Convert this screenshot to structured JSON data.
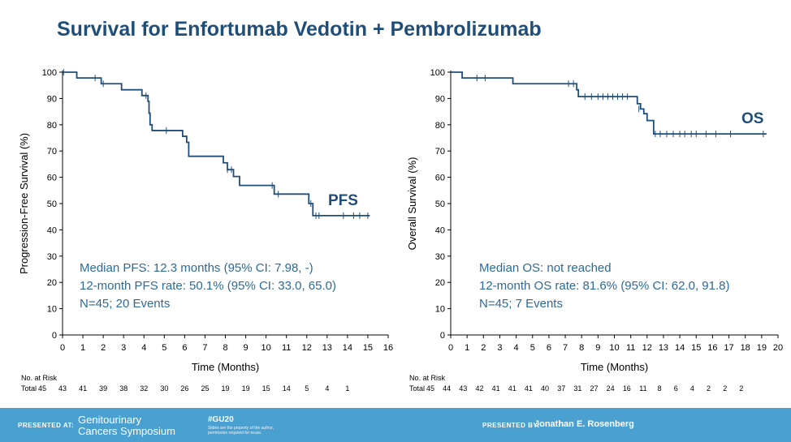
{
  "slide_title": "Survival for Enfortumab Vedotin + Pembrolizumab",
  "colors": {
    "curve": "#1f4e79",
    "text_blue": "#2e6a99",
    "title": "#1f4e79",
    "footer": "#4aa0d0"
  },
  "footer": {
    "presented_at": "PRESENTED AT:",
    "symposium_line1": "Genitourinary",
    "symposium_line2": "Cancers Symposium",
    "hashtag": "#GU20",
    "rights_line1": "Slides are the property of the author,",
    "rights_line2": "permission required for reuse.",
    "presented_by": "PRESENTED BY:",
    "presenter": "Jonathan E. Rosenberg"
  },
  "chart_data": [
    {
      "type": "line",
      "subtype": "kaplan-meier",
      "series_label": "PFS",
      "xlabel": "Time (Months)",
      "ylabel": "Progression-Free Survival (%)",
      "xlim": [
        0,
        16
      ],
      "ylim": [
        0,
        100
      ],
      "xticks": [
        "0",
        "1",
        "2",
        "3",
        "4",
        "5",
        "6",
        "7",
        "8",
        "9",
        "10",
        "11",
        "12",
        "13",
        "14",
        "15",
        "16"
      ],
      "yticks": [
        "0",
        "10",
        "20",
        "30",
        "40",
        "50",
        "60",
        "70",
        "80",
        "90",
        "100"
      ],
      "steps": [
        [
          0,
          100
        ],
        [
          0.7,
          97.8
        ],
        [
          1.9,
          95.6
        ],
        [
          2.9,
          93.3
        ],
        [
          3.9,
          91.1
        ],
        [
          4.2,
          88.9
        ],
        [
          4.25,
          84.4
        ],
        [
          4.3,
          80.0
        ],
        [
          4.4,
          77.8
        ],
        [
          5.9,
          75.6
        ],
        [
          6.1,
          73.3
        ],
        [
          6.2,
          68.0
        ],
        [
          7.9,
          65.5
        ],
        [
          8.1,
          62.9
        ],
        [
          8.4,
          60.3
        ],
        [
          8.7,
          56.9
        ],
        [
          10.4,
          53.6
        ],
        [
          12.1,
          50.0
        ],
        [
          12.3,
          45.4
        ],
        [
          15.1,
          45.4
        ]
      ],
      "censors": [
        [
          0.05,
          100
        ],
        [
          1.6,
          97.8
        ],
        [
          2.0,
          95.6
        ],
        [
          4.1,
          91.1
        ],
        [
          5.1,
          77.8
        ],
        [
          8.1,
          62.9
        ],
        [
          8.3,
          62.9
        ],
        [
          10.3,
          56.9
        ],
        [
          10.6,
          53.6
        ],
        [
          12.2,
          50.0
        ],
        [
          12.45,
          45.4
        ],
        [
          12.6,
          45.4
        ],
        [
          13.8,
          45.4
        ],
        [
          14.3,
          45.4
        ],
        [
          14.6,
          45.4
        ],
        [
          15.0,
          45.4
        ]
      ],
      "annotations": [
        "Median PFS: 12.3 months (95% CI: 7.98, -)",
        "12-month PFS rate: 50.1% (95% CI: 33.0, 65.0)",
        "N=45; 20 Events"
      ],
      "risk_title": "No. at Risk",
      "risk_row_label": "Total",
      "at_risk": [
        "45",
        "43",
        "41",
        "39",
        "38",
        "32",
        "30",
        "26",
        "25",
        "19",
        "19",
        "15",
        "14",
        "5",
        "4",
        "1"
      ]
    },
    {
      "type": "line",
      "subtype": "kaplan-meier",
      "series_label": "OS",
      "xlabel": "Time (Months)",
      "ylabel": "Overall Survival (%)",
      "xlim": [
        0,
        20
      ],
      "ylim": [
        0,
        100
      ],
      "xticks": [
        "0",
        "1",
        "2",
        "3",
        "4",
        "5",
        "6",
        "7",
        "8",
        "9",
        "10",
        "11",
        "12",
        "13",
        "14",
        "15",
        "16",
        "17",
        "18",
        "19",
        "20"
      ],
      "yticks": [
        "0",
        "10",
        "20",
        "30",
        "40",
        "50",
        "60",
        "70",
        "80",
        "90",
        "100"
      ],
      "steps": [
        [
          0,
          100
        ],
        [
          0.7,
          97.8
        ],
        [
          3.8,
          95.6
        ],
        [
          7.7,
          93.3
        ],
        [
          7.8,
          90.7
        ],
        [
          11.4,
          88.0
        ],
        [
          11.6,
          86.0
        ],
        [
          11.8,
          84.2
        ],
        [
          12.0,
          81.6
        ],
        [
          12.4,
          76.5
        ],
        [
          19.3,
          76.5
        ]
      ],
      "censors": [
        [
          1.6,
          97.8
        ],
        [
          2.1,
          97.8
        ],
        [
          7.2,
          95.6
        ],
        [
          7.5,
          95.6
        ],
        [
          8.2,
          90.7
        ],
        [
          8.6,
          90.7
        ],
        [
          9.0,
          90.7
        ],
        [
          9.3,
          90.7
        ],
        [
          9.6,
          90.7
        ],
        [
          9.9,
          90.7
        ],
        [
          10.2,
          90.7
        ],
        [
          10.5,
          90.7
        ],
        [
          10.8,
          90.7
        ],
        [
          11.5,
          86.0
        ],
        [
          12.5,
          76.5
        ],
        [
          12.8,
          76.5
        ],
        [
          13.2,
          76.5
        ],
        [
          13.6,
          76.5
        ],
        [
          14.0,
          76.5
        ],
        [
          14.3,
          76.5
        ],
        [
          14.7,
          76.5
        ],
        [
          15.0,
          76.5
        ],
        [
          15.6,
          76.5
        ],
        [
          16.2,
          76.5
        ],
        [
          17.1,
          76.5
        ],
        [
          19.1,
          76.5
        ]
      ],
      "annotations": [
        "Median OS: not reached",
        "12-month OS rate: 81.6% (95% CI: 62.0, 91.8)",
        "N=45; 7 Events"
      ],
      "risk_title": "No. at Risk",
      "risk_row_label": "Total",
      "at_risk": [
        "45",
        "44",
        "43",
        "42",
        "41",
        "41",
        "41",
        "40",
        "37",
        "31",
        "27",
        "24",
        "16",
        "11",
        "8",
        "6",
        "4",
        "2",
        "2",
        "2"
      ]
    }
  ]
}
